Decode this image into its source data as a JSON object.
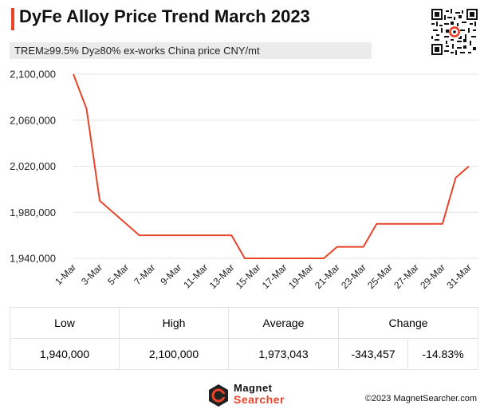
{
  "header": {
    "title": "DyFe Alloy Price Trend March 2023",
    "subtitle": "TREM≥99.5% Dy≥80%   ex-works China price   CNY/mt"
  },
  "colors": {
    "accent": "#e8442a",
    "line": "#e8442a",
    "grid": "#e3e3e3",
    "subtitle_bg": "#ebebeb"
  },
  "chart_data": {
    "type": "line",
    "title": "DyFe Alloy Price Trend March 2023",
    "ylim": [
      1940000,
      2100000
    ],
    "yticks": [
      1940000,
      1980000,
      2020000,
      2060000,
      2100000
    ],
    "ytick_labels": [
      "1,940,000",
      "1,980,000",
      "2,020,000",
      "2,060,000",
      "2,100,000"
    ],
    "xtick_labels": [
      "1-Mar",
      "3-Mar",
      "5-Mar",
      "7-Mar",
      "9-Mar",
      "11-Mar",
      "13-Mar",
      "15-Mar",
      "17-Mar",
      "19-Mar",
      "21-Mar",
      "23-Mar",
      "25-Mar",
      "27-Mar",
      "29-Mar",
      "31-Mar"
    ],
    "grid": "horizontal",
    "series": [
      {
        "x": [
          "1-Mar",
          "2-Mar",
          "3-Mar",
          "6-Mar",
          "7-Mar",
          "8-Mar",
          "9-Mar",
          "10-Mar",
          "13-Mar",
          "14-Mar",
          "15-Mar",
          "16-Mar",
          "17-Mar",
          "20-Mar",
          "21-Mar",
          "22-Mar",
          "23-Mar",
          "24-Mar",
          "27-Mar",
          "28-Mar",
          "29-Mar",
          "30-Mar",
          "31-Mar"
        ],
        "values": [
          2100000,
          2070000,
          1990000,
          1960000,
          1960000,
          1960000,
          1960000,
          1960000,
          1960000,
          1940000,
          1940000,
          1940000,
          1940000,
          1940000,
          1950000,
          1950000,
          1950000,
          1970000,
          1970000,
          1970000,
          1970000,
          2010000,
          2020000
        ]
      }
    ]
  },
  "stats": {
    "headers": {
      "low": "Low",
      "high": "High",
      "average": "Average",
      "change": "Change"
    },
    "values": {
      "low": "1,940,000",
      "high": "2,100,000",
      "average": "1,973,043",
      "change_abs": "-343,457",
      "change_pct": "-14.83%"
    }
  },
  "footer": {
    "logo_line1": "Magnet",
    "logo_line2": "Searcher",
    "copyright": "©2023 MagnetSearcher.com"
  }
}
